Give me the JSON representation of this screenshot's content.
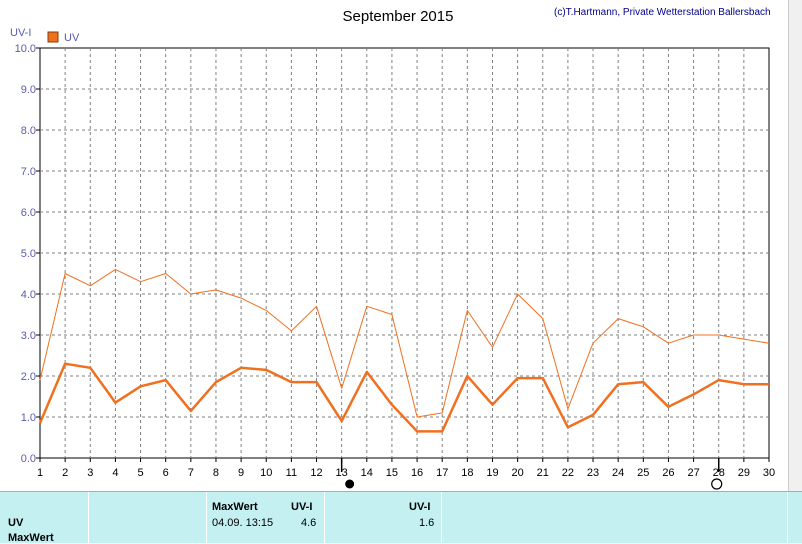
{
  "title": "September 2015",
  "copyright": "(c)T.Hartmann, Private Wetterstation Ballersbach",
  "y_unit_label": "UV-I",
  "legend": {
    "label": "UV",
    "color": "#f07020"
  },
  "chart_data": {
    "type": "line",
    "x": [
      1,
      2,
      3,
      4,
      5,
      6,
      7,
      8,
      9,
      10,
      11,
      12,
      13,
      14,
      15,
      16,
      17,
      18,
      19,
      20,
      21,
      22,
      23,
      24,
      25,
      26,
      27,
      28,
      29,
      30
    ],
    "x_ticks": [
      "1",
      "2",
      "3",
      "4",
      "5",
      "6",
      "7",
      "8",
      "9",
      "10",
      "11",
      "12",
      "13",
      "14",
      "15",
      "16",
      "17",
      "18",
      "19",
      "20",
      "21",
      "22",
      "23",
      "24",
      "25",
      "26",
      "27",
      "28",
      "29",
      "30"
    ],
    "ylim": [
      0,
      10
    ],
    "y_ticks": [
      "0.0",
      "1.0",
      "2.0",
      "3.0",
      "4.0",
      "5.0",
      "6.0",
      "7.0",
      "8.0",
      "9.0",
      "10.0"
    ],
    "grid": true,
    "series": [
      {
        "values": [
          1.9,
          4.5,
          4.2,
          4.6,
          4.3,
          4.5,
          4.0,
          4.1,
          3.9,
          3.6,
          3.1,
          3.7,
          1.7,
          3.7,
          3.5,
          1.0,
          1.1,
          3.6,
          2.7,
          4.0,
          3.4,
          1.2,
          2.8,
          3.4,
          3.2,
          2.8,
          3.0,
          3.0,
          2.9,
          2.8
        ],
        "color": "#f07020",
        "width": 1
      },
      {
        "values": [
          0.85,
          2.3,
          2.2,
          1.35,
          1.75,
          1.9,
          1.15,
          1.85,
          2.2,
          2.15,
          1.85,
          1.85,
          0.9,
          2.1,
          1.3,
          0.65,
          0.65,
          2.0,
          1.3,
          1.95,
          1.95,
          0.75,
          1.05,
          1.8,
          1.85,
          1.25,
          1.55,
          1.9,
          1.8,
          1.8
        ],
        "color": "#f07020",
        "width": 2.5
      }
    ],
    "markers": [
      {
        "x": 13,
        "symbol": "filled-circle",
        "meaning": "new moon"
      },
      {
        "x": 28,
        "symbol": "open-circle",
        "meaning": "full moon"
      }
    ]
  },
  "stats": {
    "row1_label": "UV",
    "row2_label": "MaxWert",
    "max_header": "MaxWert",
    "uvi_header": "UV-I",
    "max_date": "04.09.  13:15",
    "max_value": "4.6",
    "avg_header": "UV-I",
    "avg_value": "1.6"
  }
}
